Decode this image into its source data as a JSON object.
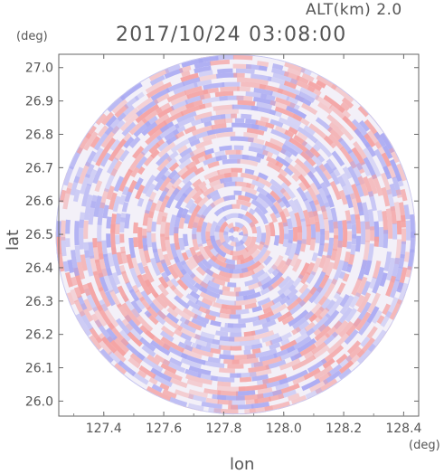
{
  "header": {
    "altitude_label": "ALT(km) 2.0",
    "timestamp": "2017/10/24 03:08:00"
  },
  "axes": {
    "x_unit": "(deg)",
    "y_unit": "(deg)",
    "x_label": "lon",
    "y_label": "lat"
  },
  "chart_data": {
    "type": "heatmap",
    "title": "2017/10/24 03:08:00",
    "subtitle": "ALT(km) 2.0",
    "xlabel": "lon",
    "ylabel": "lat",
    "xlim": [
      127.25,
      128.45
    ],
    "ylim": [
      25.955,
      27.04
    ],
    "x_ticks": [
      127.4,
      127.6,
      127.8,
      128.0,
      128.2,
      128.4
    ],
    "x_tick_labels": [
      "127.4",
      "127.6",
      "127.8",
      "128.0",
      "128.2",
      "128.4"
    ],
    "y_ticks": [
      26.0,
      26.1,
      26.2,
      26.3,
      26.4,
      26.5,
      26.6,
      26.7,
      26.8,
      26.9,
      27.0
    ],
    "y_tick_labels": [
      "26.0",
      "26.1",
      "26.2",
      "26.3",
      "26.4",
      "26.5",
      "26.6",
      "26.7",
      "26.8",
      "26.9",
      "27.0"
    ],
    "field_center": [
      127.84,
      26.5
    ],
    "field_radius_lat": 0.54,
    "colors": {
      "positive": "#f4a0a0",
      "negative": "#a8a8f2",
      "neutral": "#ffffff",
      "axis": "#555555"
    },
    "grid": false
  }
}
